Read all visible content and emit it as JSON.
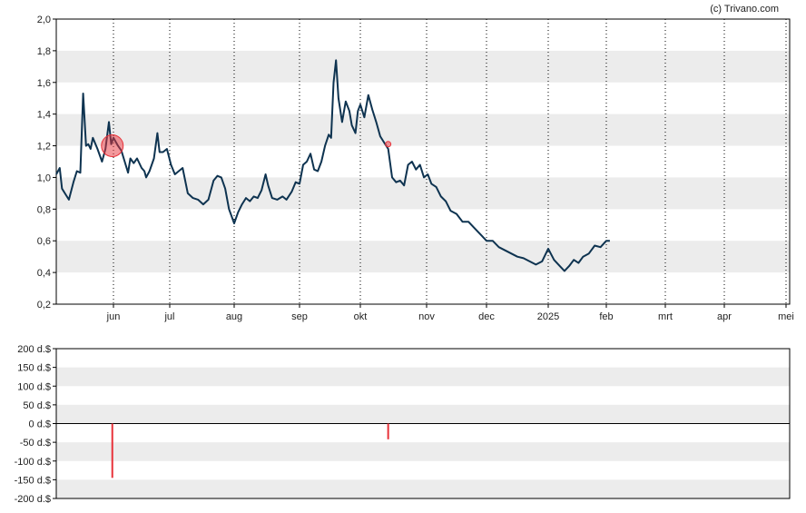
{
  "copyright": "(c) Trivano.com",
  "colors": {
    "price_line": "#0e3350",
    "band": "#ececec",
    "marker": "#e8323a",
    "marker_fill": "rgba(232,50,58,0.5)",
    "axis": "#000000",
    "grid": "#000000"
  },
  "chart_data": [
    {
      "type": "line",
      "name": "price",
      "ylim": [
        0.2,
        2.0
      ],
      "y_ticks": [
        "0,2",
        "0,4",
        "0,6",
        "0,8",
        "1,0",
        "1,2",
        "1,4",
        "1,6",
        "1,8",
        "2,0"
      ],
      "x_ticks": [
        "jun",
        "jul",
        "aug",
        "sep",
        "okt",
        "nov",
        "dec",
        "2025",
        "feb",
        "mrt",
        "apr",
        "mei"
      ],
      "grid": "vertical dotted at month starts, alternating horizontal bands",
      "series": [
        {
          "values": [
            [
              0,
              1.02
            ],
            [
              0.06,
              1.06
            ],
            [
              0.1,
              0.93
            ],
            [
              0.15,
              0.9
            ],
            [
              0.22,
              0.86
            ],
            [
              0.3,
              0.97
            ],
            [
              0.36,
              1.04
            ],
            [
              0.42,
              1.03
            ],
            [
              0.47,
              1.53
            ],
            [
              0.52,
              1.2
            ],
            [
              0.56,
              1.21
            ],
            [
              0.6,
              1.18
            ],
            [
              0.64,
              1.25
            ],
            [
              0.72,
              1.18
            ],
            [
              0.8,
              1.1
            ],
            [
              0.86,
              1.18
            ],
            [
              0.92,
              1.35
            ],
            [
              0.96,
              1.21
            ],
            [
              1.0,
              1.25
            ],
            [
              1.08,
              1.2
            ],
            [
              1.14,
              1.17
            ],
            [
              1.2,
              1.1
            ],
            [
              1.26,
              1.03
            ],
            [
              1.3,
              1.12
            ],
            [
              1.36,
              1.09
            ],
            [
              1.42,
              1.12
            ],
            [
              1.5,
              1.06
            ],
            [
              1.55,
              1.04
            ],
            [
              1.58,
              1.0
            ],
            [
              1.64,
              1.04
            ],
            [
              1.72,
              1.12
            ],
            [
              1.78,
              1.28
            ],
            [
              1.82,
              1.16
            ],
            [
              1.88,
              1.16
            ],
            [
              1.95,
              1.18
            ],
            [
              2.02,
              1.08
            ],
            [
              2.08,
              1.02
            ],
            [
              2.14,
              1.04
            ],
            [
              2.2,
              1.06
            ],
            [
              2.28,
              0.9
            ],
            [
              2.36,
              0.87
            ],
            [
              2.44,
              0.86
            ],
            [
              2.52,
              0.83
            ],
            [
              2.6,
              0.86
            ],
            [
              2.68,
              0.98
            ],
            [
              2.74,
              1.01
            ],
            [
              2.8,
              1.0
            ],
            [
              2.86,
              0.93
            ],
            [
              2.92,
              0.8
            ],
            [
              3.0,
              0.71
            ],
            [
              3.06,
              0.78
            ],
            [
              3.12,
              0.83
            ],
            [
              3.18,
              0.87
            ],
            [
              3.24,
              0.85
            ],
            [
              3.3,
              0.88
            ],
            [
              3.36,
              0.87
            ],
            [
              3.42,
              0.92
            ],
            [
              3.48,
              1.02
            ],
            [
              3.52,
              0.95
            ],
            [
              3.58,
              0.87
            ],
            [
              3.66,
              0.86
            ],
            [
              3.74,
              0.88
            ],
            [
              3.8,
              0.86
            ],
            [
              3.88,
              0.91
            ],
            [
              3.94,
              0.97
            ],
            [
              4.0,
              0.96
            ],
            [
              4.06,
              1.08
            ],
            [
              4.12,
              1.1
            ],
            [
              4.18,
              1.15
            ],
            [
              4.24,
              1.05
            ],
            [
              4.3,
              1.04
            ],
            [
              4.36,
              1.1
            ],
            [
              4.42,
              1.2
            ],
            [
              4.48,
              1.27
            ],
            [
              4.52,
              1.25
            ],
            [
              4.56,
              1.6
            ],
            [
              4.6,
              1.74
            ],
            [
              4.64,
              1.5
            ],
            [
              4.7,
              1.35
            ],
            [
              4.76,
              1.48
            ],
            [
              4.82,
              1.42
            ],
            [
              4.86,
              1.33
            ],
            [
              4.92,
              1.28
            ],
            [
              4.96,
              1.42
            ],
            [
              5.0,
              1.46
            ],
            [
              5.06,
              1.38
            ],
            [
              5.12,
              1.52
            ],
            [
              5.18,
              1.43
            ],
            [
              5.24,
              1.35
            ],
            [
              5.3,
              1.26
            ],
            [
              5.36,
              1.22
            ],
            [
              5.42,
              1.18
            ],
            [
              5.48,
              1.0
            ],
            [
              5.54,
              0.97
            ],
            [
              5.6,
              0.98
            ],
            [
              5.66,
              0.95
            ],
            [
              5.72,
              1.08
            ],
            [
              5.78,
              1.1
            ],
            [
              5.84,
              1.05
            ],
            [
              5.9,
              1.08
            ],
            [
              5.96,
              1.0
            ],
            [
              6.02,
              1.02
            ],
            [
              6.08,
              0.96
            ],
            [
              6.16,
              0.94
            ],
            [
              6.24,
              0.88
            ],
            [
              6.32,
              0.85
            ],
            [
              6.4,
              0.79
            ],
            [
              6.5,
              0.77
            ],
            [
              6.6,
              0.72
            ],
            [
              6.7,
              0.72
            ],
            [
              6.8,
              0.68
            ],
            [
              6.9,
              0.64
            ],
            [
              7.0,
              0.6
            ],
            [
              7.1,
              0.6
            ],
            [
              7.2,
              0.56
            ],
            [
              7.3,
              0.54
            ],
            [
              7.4,
              0.52
            ],
            [
              7.5,
              0.5
            ],
            [
              7.6,
              0.49
            ],
            [
              7.7,
              0.47
            ],
            [
              7.8,
              0.45
            ],
            [
              7.9,
              0.47
            ],
            [
              8.0,
              0.55
            ],
            [
              8.1,
              0.48
            ],
            [
              8.2,
              0.44
            ],
            [
              8.28,
              0.41
            ],
            [
              8.36,
              0.44
            ],
            [
              8.44,
              0.48
            ],
            [
              8.52,
              0.46
            ],
            [
              8.6,
              0.5
            ],
            [
              8.7,
              0.52
            ],
            [
              8.8,
              0.57
            ],
            [
              8.9,
              0.56
            ],
            [
              9.0,
              0.6
            ],
            [
              9.06,
              0.6
            ]
          ]
        }
      ],
      "markers": [
        {
          "x": 0.98,
          "y": 1.2,
          "kind": "large"
        },
        {
          "x": 5.42,
          "y": 1.21,
          "kind": "small"
        }
      ]
    },
    {
      "type": "bar",
      "name": "transactions",
      "ylim": [
        -200,
        200
      ],
      "y_ticks": [
        "-200 d.$",
        "-150 d.$",
        "-100 d.$",
        "-50 d.$",
        "0 d.$",
        "50 d.$",
        "100 d.$",
        "150 d.$",
        "200 d.$"
      ],
      "bars": [
        {
          "x": 0.98,
          "value": -145
        },
        {
          "x": 5.42,
          "value": -42
        }
      ]
    }
  ]
}
